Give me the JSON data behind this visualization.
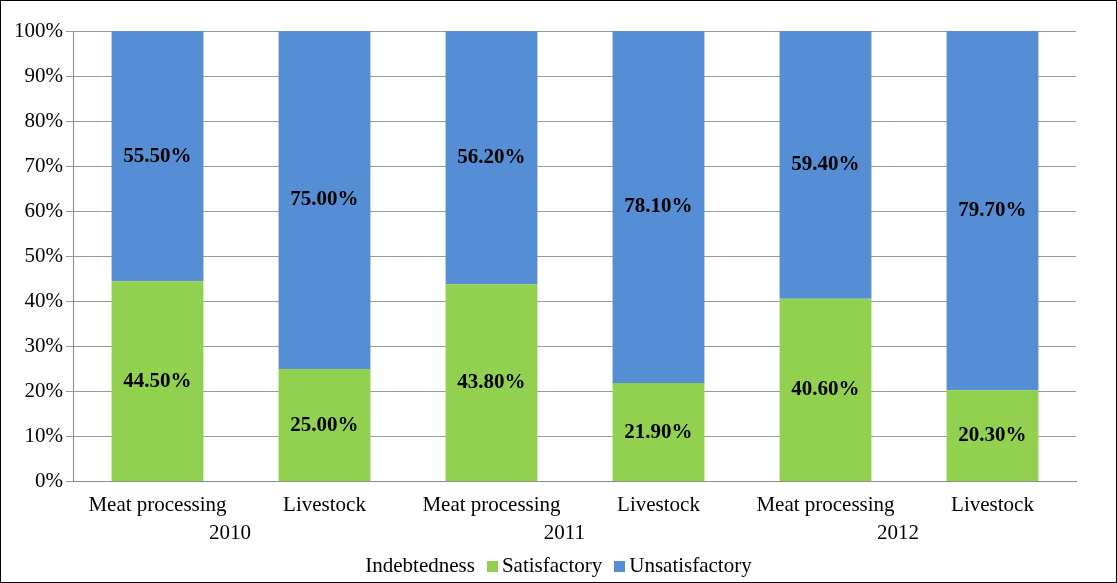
{
  "chart_data": {
    "type": "bar",
    "stacked": true,
    "categories": [
      "Meat processing",
      "Livestock",
      "Meat processing",
      "Livestock",
      "Meat processing",
      "Livestock"
    ],
    "series": [
      {
        "name": "Satisfactory",
        "color": "#92d050",
        "values": [
          44.5,
          25.0,
          43.8,
          21.9,
          40.6,
          20.3
        ],
        "value_labels": [
          "44.50%",
          "25.00%",
          "43.80%",
          "21.90%",
          "40.60%",
          "20.30%"
        ]
      },
      {
        "name": "Unsatisfactory",
        "color": "#558ed5",
        "values": [
          55.5,
          75.0,
          56.2,
          78.1,
          59.4,
          79.7
        ],
        "value_labels": [
          "55.50%",
          "75.00%",
          "56.20%",
          "78.10%",
          "59.40%",
          "79.70%"
        ]
      }
    ],
    "annotations": [
      "2010",
      "2011",
      "2012"
    ],
    "legend_title": "Indebtedness",
    "legend": "bottom",
    "grid": "y",
    "ylim": [
      0,
      100
    ],
    "yticks": [
      {
        "value": 0,
        "label": "0%"
      },
      {
        "value": 10,
        "label": "10%"
      },
      {
        "value": 20,
        "label": "20%"
      },
      {
        "value": 30,
        "label": "30%"
      },
      {
        "value": 40,
        "label": "40%"
      },
      {
        "value": 50,
        "label": "50%"
      },
      {
        "value": 60,
        "label": "60%"
      },
      {
        "value": 70,
        "label": "70%"
      },
      {
        "value": 80,
        "label": "80%"
      },
      {
        "value": 90,
        "label": "90%"
      },
      {
        "value": 100,
        "label": "100%"
      }
    ]
  }
}
